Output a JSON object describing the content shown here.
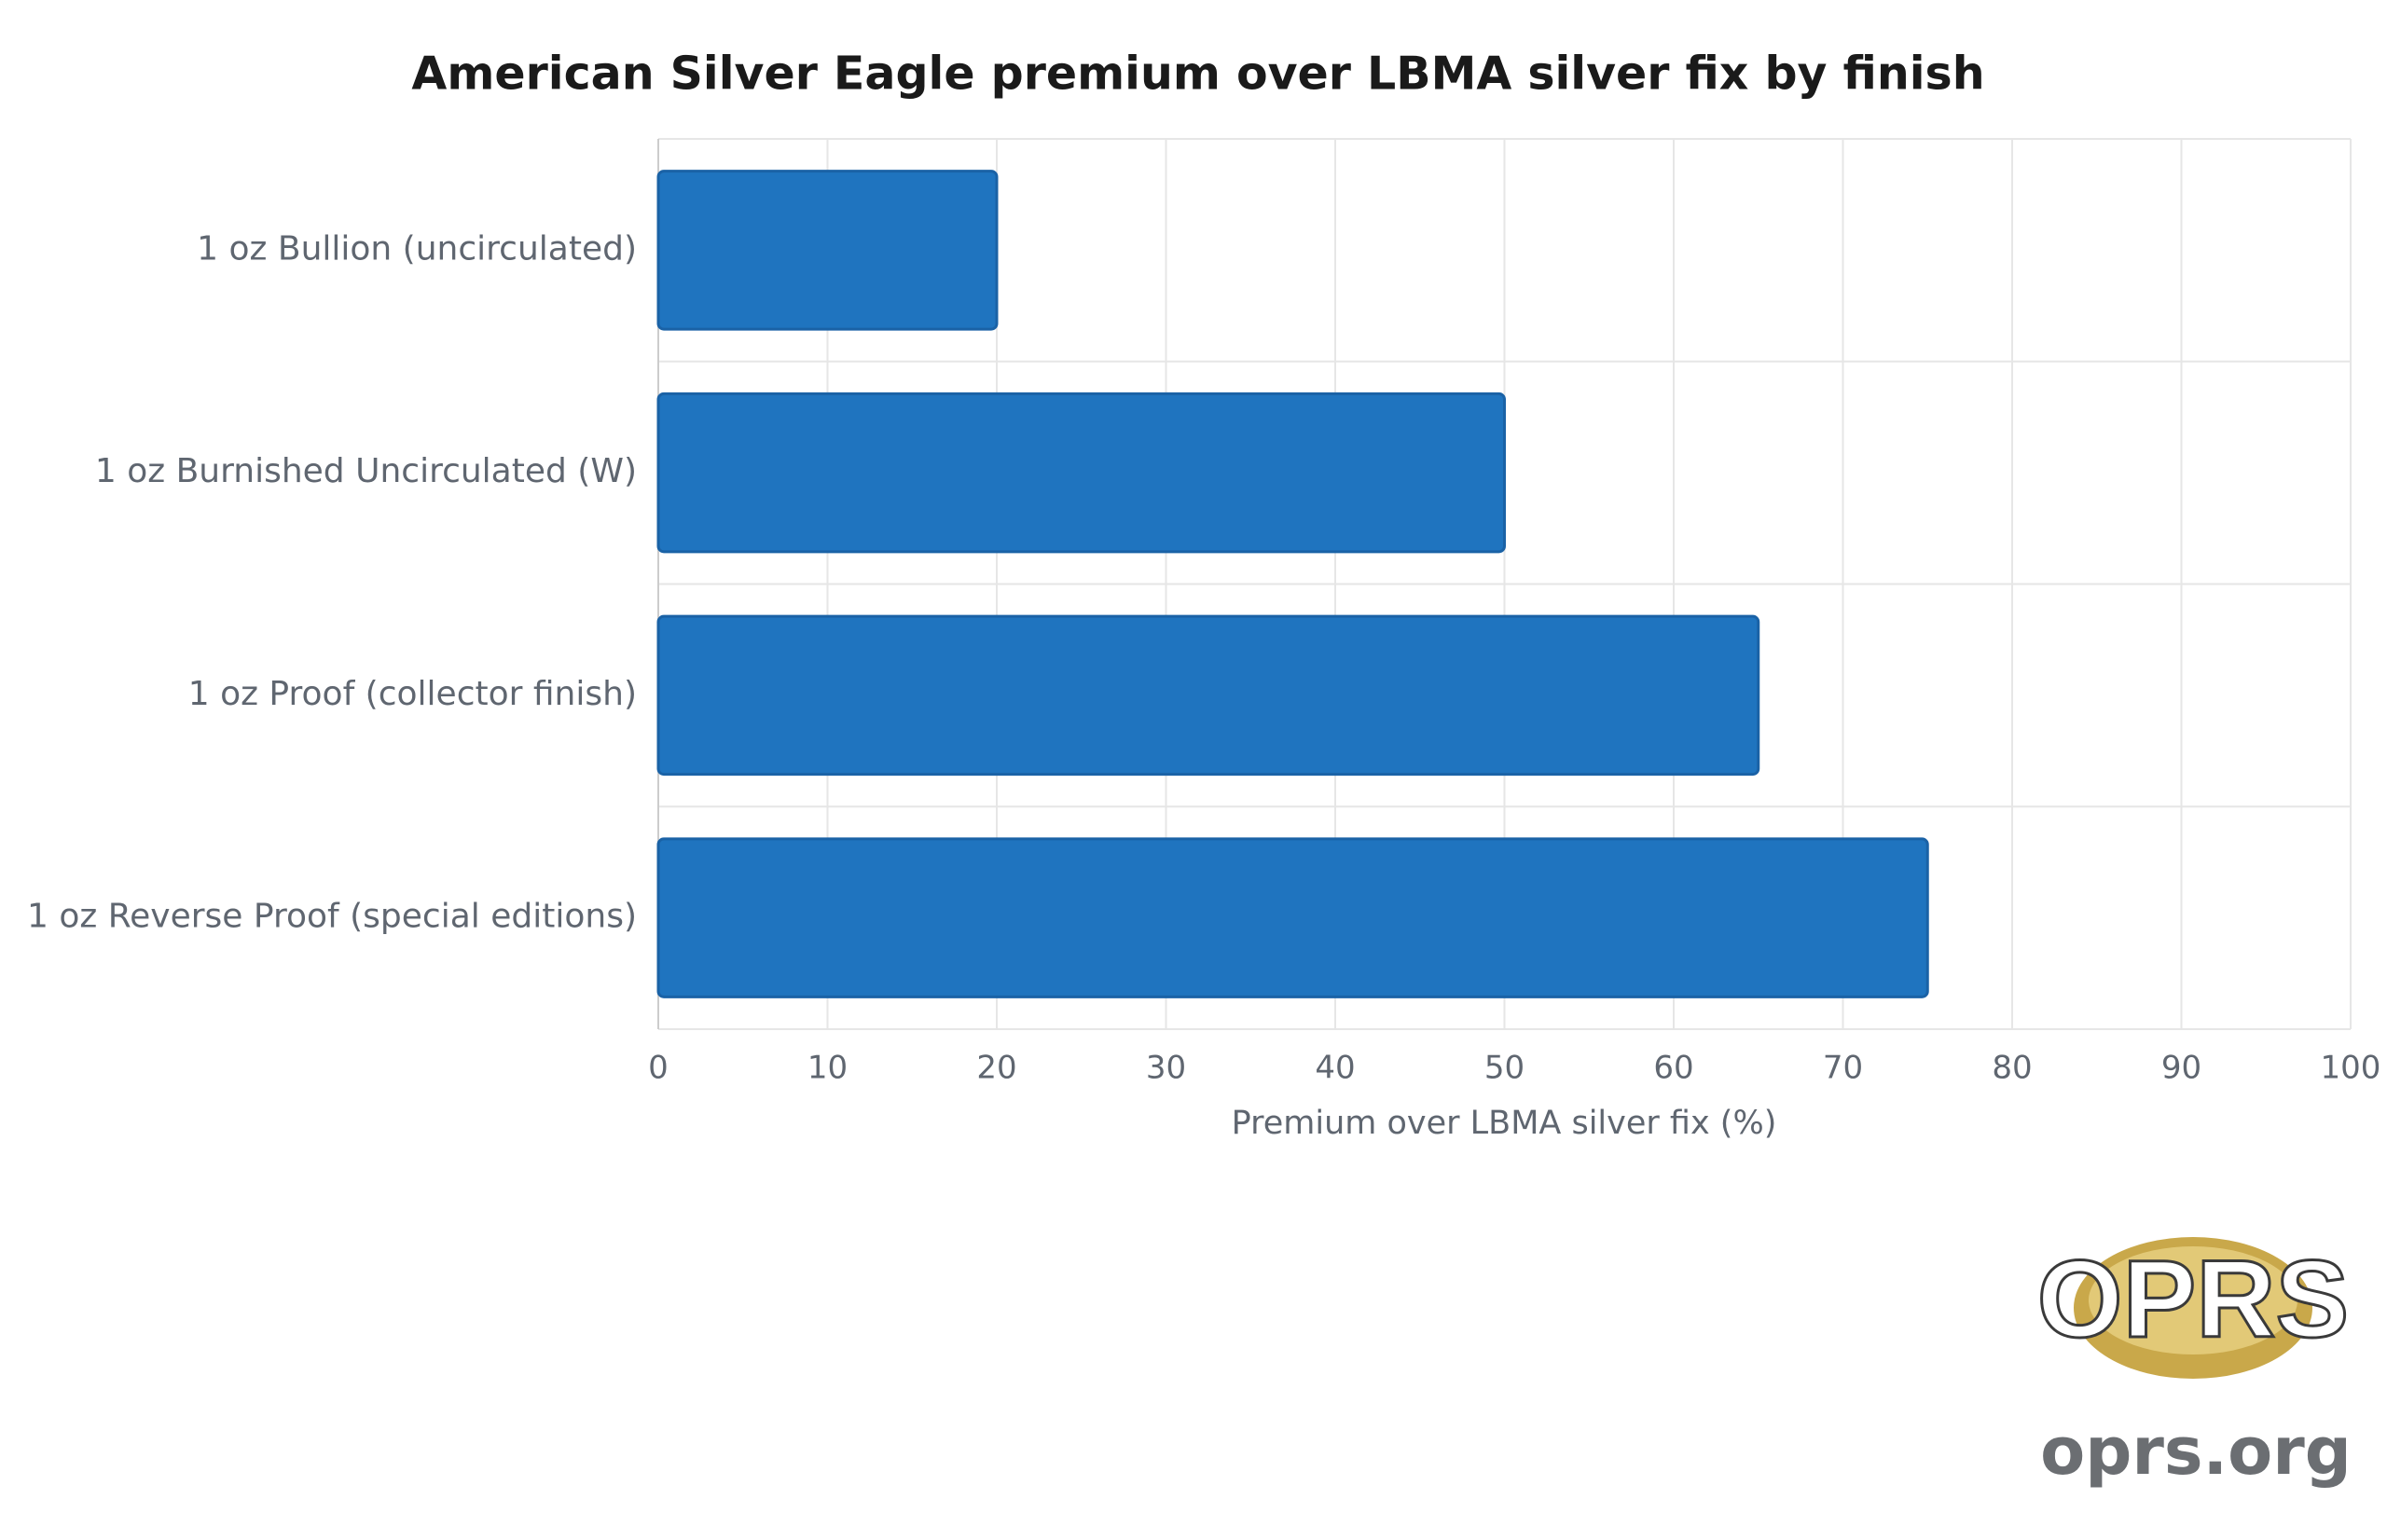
{
  "chart_data": {
    "type": "bar",
    "orientation": "horizontal",
    "title": "American Silver Eagle premium over LBMA silver fix by finish",
    "categories": [
      "1 oz Bullion (uncirculated)",
      "1 oz Burnished Uncirculated (W)",
      "1 oz Proof (collector finish)",
      "1 oz Reverse Proof (special editions)"
    ],
    "values": [
      20,
      50,
      65,
      75
    ],
    "color": "#1f74bf",
    "xlabel": "Premium over LBMA silver fix (%)",
    "xlim": [
      0,
      100
    ],
    "xticks": [
      0,
      10,
      20,
      30,
      40,
      50,
      60,
      70,
      80,
      90,
      100
    ],
    "grid": true
  },
  "watermark": {
    "logo": "OPRS",
    "site": "oprs.org"
  }
}
